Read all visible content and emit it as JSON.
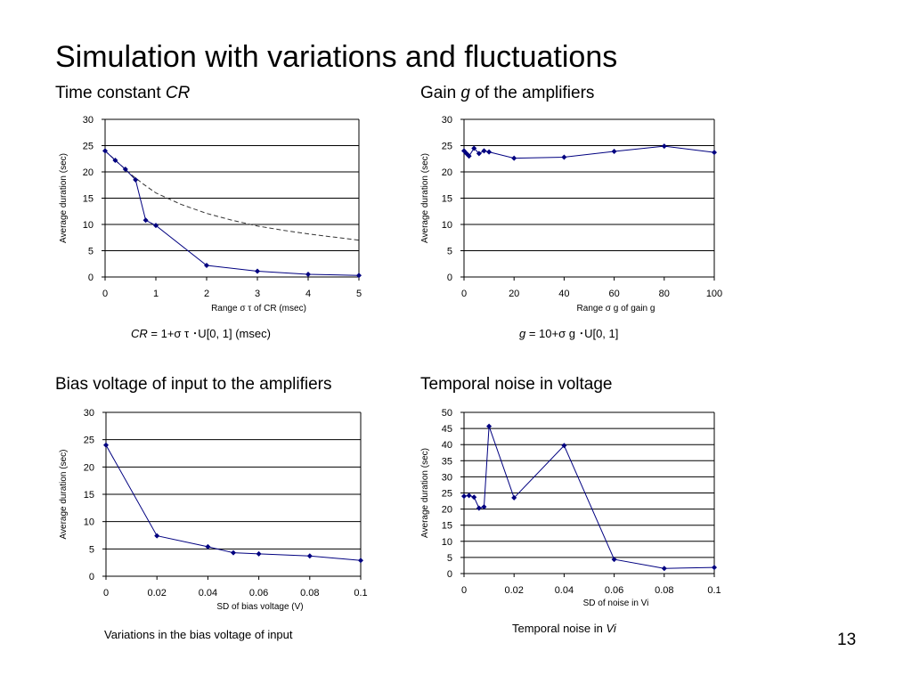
{
  "slide": {
    "title": "Simulation with variations and fluctuations",
    "page_number": "13"
  },
  "sections": {
    "cr": {
      "label": "Time constant ",
      "italic": "CR",
      "after": ""
    },
    "gain": {
      "label": "Gain ",
      "italic": "g",
      "after": " of the amplifiers"
    },
    "bias": {
      "label": "Bias voltage of input to the amplifiers",
      "italic": "",
      "after": ""
    },
    "noise": {
      "label": "Temporal noise in voltage",
      "italic": "",
      "after": ""
    }
  },
  "formulas": {
    "cr": {
      "italic": "CR",
      "text": " = 1+σ τ ･U[0, 1] (msec)"
    },
    "gain": {
      "italic": "g",
      "text": " = 10+σ g ･U[0, 1]"
    },
    "bias": {
      "text": "Variations in the bias voltage of input"
    },
    "noise": {
      "prefix": "Temporal noise in ",
      "italic": "Vi"
    }
  },
  "colors": {
    "series": "#000080",
    "grid": "#000000",
    "dashed": "#333333"
  },
  "chart_data": [
    {
      "id": "cr",
      "type": "line",
      "xlabel": "Range σ τ of CR (msec)",
      "ylabel": "Average duration (sec)",
      "xlim": [
        0,
        5
      ],
      "ylim": [
        0,
        30
      ],
      "xticks": [
        "0",
        "1",
        "2",
        "3",
        "4",
        "5"
      ],
      "yticks": [
        "0",
        "5",
        "10",
        "15",
        "20",
        "25",
        "30"
      ],
      "series": [
        {
          "x": [
            0,
            0.2,
            0.4,
            0.6,
            0.8,
            1,
            2,
            3,
            4,
            5
          ],
          "y": [
            24,
            22.2,
            20.5,
            18.5,
            10.8,
            9.8,
            2.2,
            1.1,
            0.5,
            0.3
          ]
        }
      ],
      "dashed": {
        "x": [
          0,
          0.25,
          0.5,
          0.75,
          1,
          1.5,
          2,
          2.5,
          3,
          3.5,
          4,
          4.5,
          5
        ],
        "y": [
          24,
          21.8,
          19.6,
          17.7,
          16,
          13.8,
          12.1,
          10.8,
          9.7,
          8.9,
          8.2,
          7.6,
          7
        ]
      }
    },
    {
      "id": "gain",
      "type": "line",
      "xlabel": "Range σ g of gain g",
      "ylabel": "Average duration (sec)",
      "xlim": [
        0,
        100
      ],
      "ylim": [
        0,
        30
      ],
      "xticks": [
        "0",
        "20",
        "40",
        "60",
        "80",
        "100"
      ],
      "yticks": [
        "0",
        "5",
        "10",
        "15",
        "20",
        "25",
        "30"
      ],
      "series": [
        {
          "x": [
            0,
            1,
            2,
            4,
            6,
            8,
            10,
            20,
            40,
            60,
            80,
            100
          ],
          "y": [
            24,
            23.5,
            23,
            24.5,
            23.5,
            24,
            23.8,
            22.6,
            22.8,
            23.9,
            24.9,
            23.7
          ]
        }
      ]
    },
    {
      "id": "bias",
      "type": "line",
      "xlabel": "SD of bias voltage (V)",
      "ylabel": "Average duration (sec)",
      "xlim": [
        0,
        0.1
      ],
      "ylim": [
        0,
        30
      ],
      "xticks": [
        "0",
        "0.02",
        "0.04",
        "0.06",
        "0.08",
        "0.1"
      ],
      "yticks": [
        "0",
        "5",
        "10",
        "15",
        "20",
        "25",
        "30"
      ],
      "series": [
        {
          "x": [
            0,
            0.02,
            0.04,
            0.05,
            0.06,
            0.08,
            0.1
          ],
          "y": [
            24,
            7.4,
            5.4,
            4.3,
            4.1,
            3.7,
            2.9
          ]
        }
      ]
    },
    {
      "id": "noise",
      "type": "line",
      "xlabel": "SD of noise in Vi",
      "ylabel": "Average duration (sec)",
      "xlim": [
        0,
        0.1
      ],
      "ylim": [
        0,
        50
      ],
      "xticks": [
        "0",
        "0.02",
        "0.04",
        "0.06",
        "0.08",
        "0.1"
      ],
      "yticks": [
        "0",
        "5",
        "10",
        "15",
        "20",
        "25",
        "30",
        "35",
        "40",
        "45",
        "50"
      ],
      "series": [
        {
          "x": [
            0,
            0.002,
            0.004,
            0.006,
            0.008,
            0.01,
            0.02,
            0.04,
            0.06,
            0.08,
            0.1
          ],
          "y": [
            24,
            24.2,
            23.7,
            20.3,
            20.7,
            45.7,
            23.5,
            39.7,
            4.4,
            1.6,
            1.9
          ]
        }
      ]
    }
  ]
}
